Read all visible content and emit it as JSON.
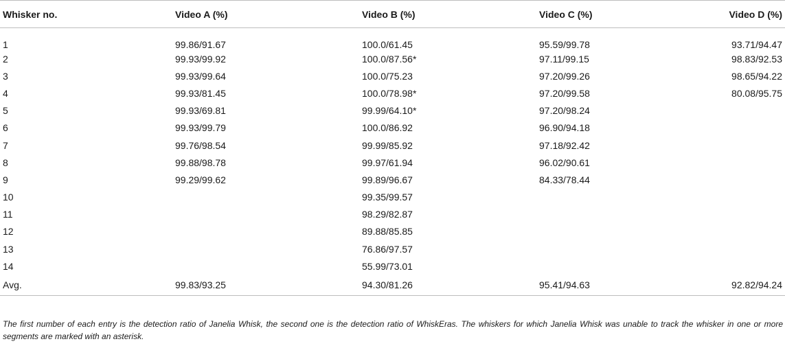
{
  "table": {
    "headers": [
      "Whisker no.",
      "Video A (%)",
      "Video B (%)",
      "Video C (%)",
      "Video D (%)"
    ],
    "rows": [
      [
        "1",
        "99.86/91.67",
        "100.0/61.45",
        "95.59/99.78",
        "93.71/94.47"
      ],
      [
        "2",
        "99.93/99.92",
        "100.0/87.56*",
        "97.11/99.15",
        "98.83/92.53"
      ],
      [
        "3",
        "99.93/99.64",
        "100.0/75.23",
        "97.20/99.26",
        "98.65/94.22"
      ],
      [
        "4",
        "99.93/81.45",
        "100.0/78.98*",
        "97.20/99.58",
        "80.08/95.75"
      ],
      [
        "5",
        "99.93/69.81",
        "99.99/64.10*",
        "97.20/98.24",
        ""
      ],
      [
        "6",
        "99.93/99.79",
        "100.0/86.92",
        "96.90/94.18",
        ""
      ],
      [
        "7",
        "99.76/98.54",
        "99.99/85.92",
        "97.18/92.42",
        ""
      ],
      [
        "8",
        "99.88/98.78",
        "99.97/61.94",
        "96.02/90.61",
        ""
      ],
      [
        "9",
        "99.29/99.62",
        "99.89/96.67",
        "84.33/78.44",
        ""
      ],
      [
        "10",
        "",
        "99.35/99.57",
        "",
        ""
      ],
      [
        "11",
        "",
        "98.29/82.87",
        "",
        ""
      ],
      [
        "12",
        "",
        "89.88/85.85",
        "",
        ""
      ],
      [
        "13",
        "",
        "76.86/97.57",
        "",
        ""
      ],
      [
        "14",
        "",
        "55.99/73.01",
        "",
        ""
      ],
      [
        "Avg.",
        "99.83/93.25",
        "94.30/81.26",
        "95.41/94.63",
        "92.82/94.24"
      ]
    ]
  },
  "footnote": "The first number of each entry is the detection ratio of Janelia Whisk, the second one is the detection ratio of WhiskEras. The whiskers for which Janelia Whisk was unable to track the whisker in one or more segments are marked with an asterisk."
}
